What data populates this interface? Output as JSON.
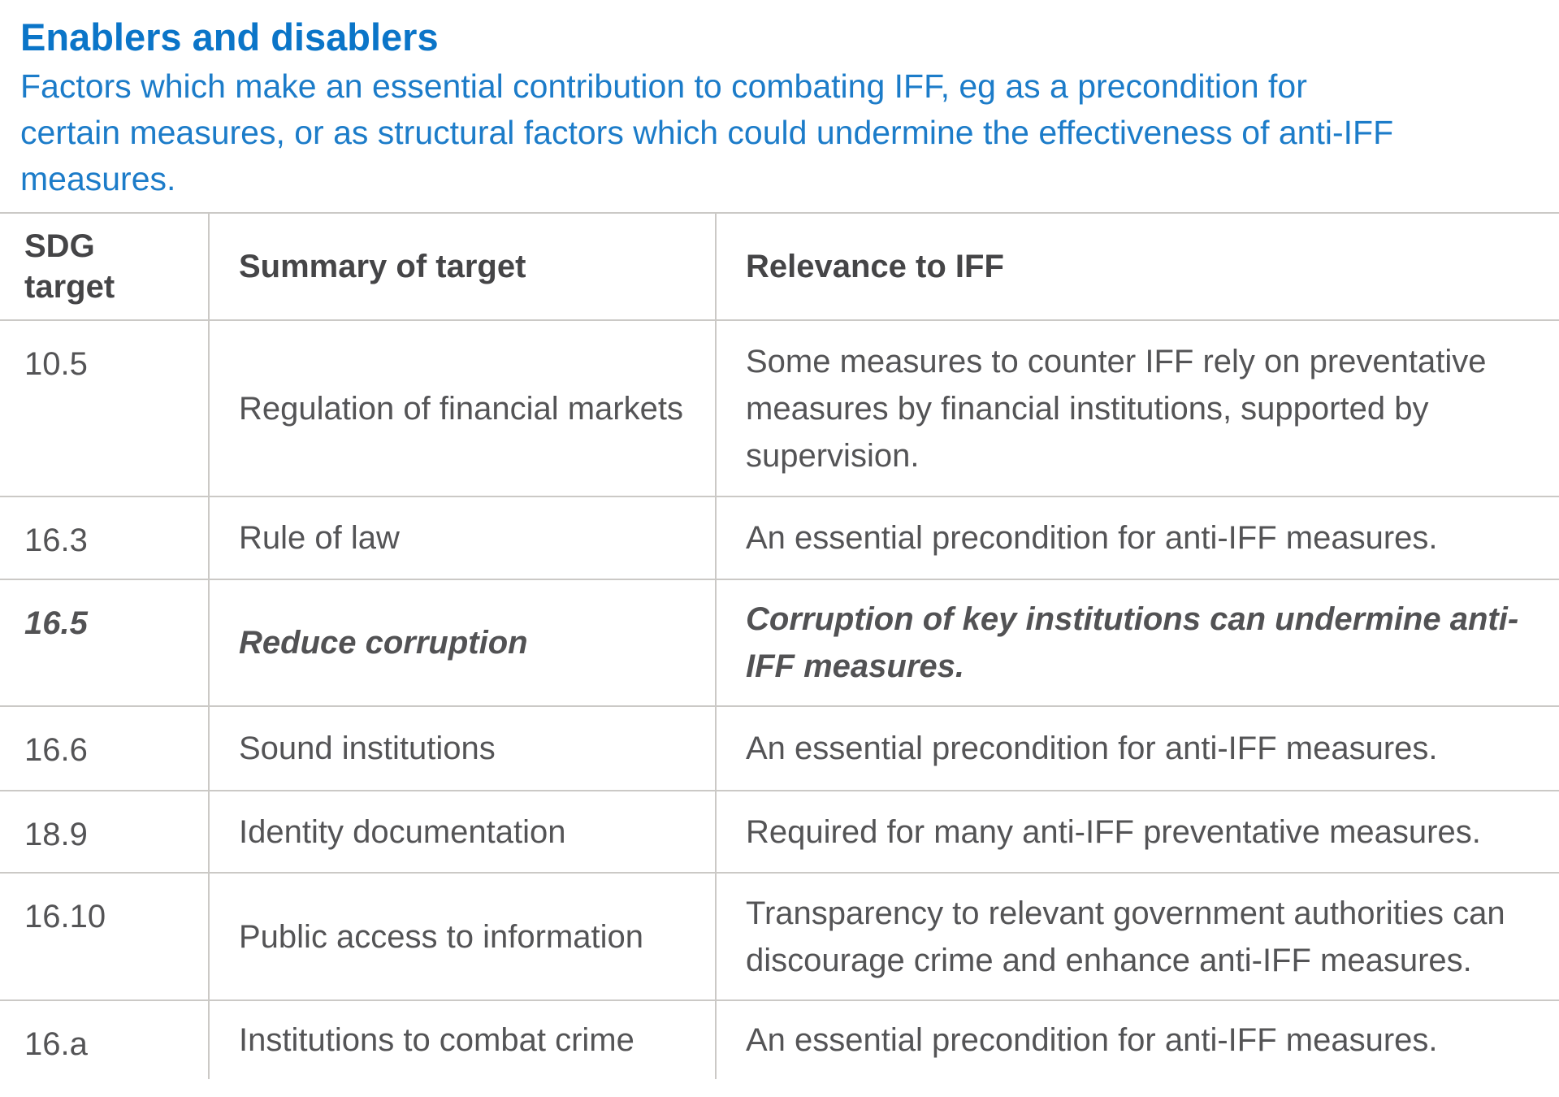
{
  "page": {
    "title": "Enablers and disablers",
    "description_lines": [
      "Factors which make an essential contribution to combating IFF, eg as a precondition for",
      "certain measures, or as structural factors which could undermine the effectiveness of anti-IFF",
      "measures."
    ]
  },
  "table": {
    "columns": [
      "SDG target",
      "Summary of target",
      "Relevance to IFF"
    ],
    "rows": [
      {
        "target": "10.5",
        "summary": "Regulation of financial markets",
        "relevance": "Some measures to counter IFF rely on preventative measures by financial institutions, supported by supervision.",
        "emphasis": false
      },
      {
        "target": "16.3",
        "summary": "Rule of law",
        "relevance": "An essential precondition for anti-IFF measures.",
        "emphasis": false
      },
      {
        "target": "16.5",
        "summary": "Reduce corruption",
        "relevance": "Corruption of key institutions can undermine anti-IFF measures.",
        "emphasis": true
      },
      {
        "target": "16.6",
        "summary": "Sound institutions",
        "relevance": "An essential precondition for anti-IFF measures.",
        "emphasis": false
      },
      {
        "target": "18.9",
        "summary": "Identity documentation",
        "relevance": "Required for many anti-IFF preventative measures.",
        "emphasis": false
      },
      {
        "target": "16.10",
        "summary": "Public access to information",
        "relevance": "Transparency to relevant government authorities can discourage crime and enhance anti-IFF measures.",
        "emphasis": false
      },
      {
        "target": "16.a",
        "summary": "Institutions to combat crime",
        "relevance": "An essential precondition for anti-IFF measures.",
        "emphasis": false
      }
    ]
  },
  "colors": {
    "heading_blue": "#0b75c8",
    "body_blue": "#1c7cc9",
    "header_text": "#454547",
    "cell_text": "#545456",
    "table_border": "#cbc9c6"
  }
}
